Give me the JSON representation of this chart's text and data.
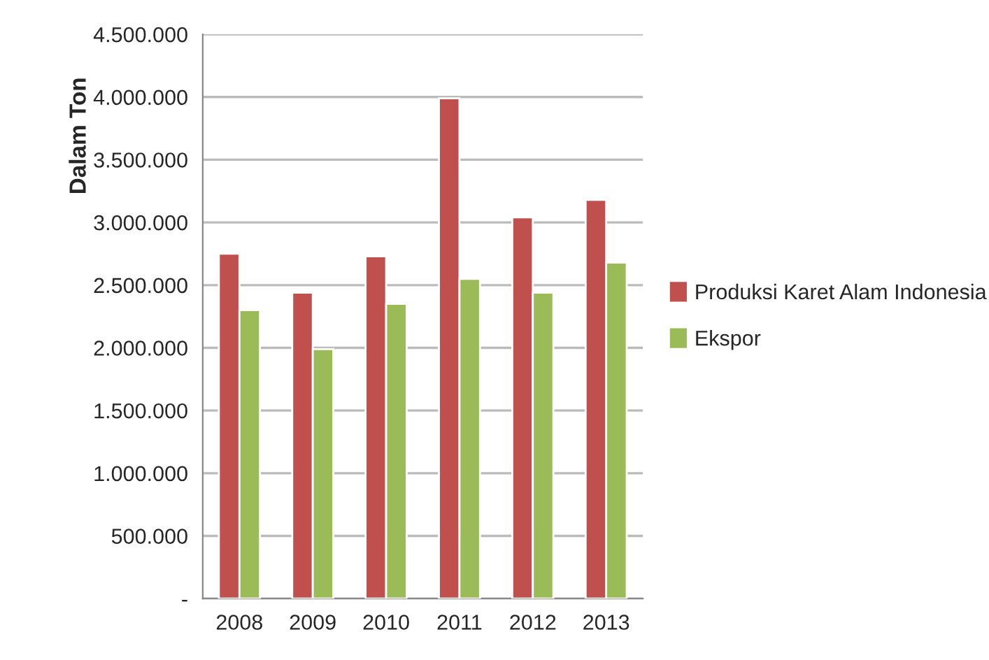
{
  "chart_data": {
    "type": "bar",
    "ylabel": "Dalam Ton",
    "categories": [
      "2008",
      "2009",
      "2010",
      "2011",
      "2012",
      "2013"
    ],
    "series": [
      {
        "name": "Produksi Karet Alam Indonesia",
        "color": "#c0504d",
        "values": [
          2750000,
          2440000,
          2730000,
          3990000,
          3040000,
          3180000
        ]
      },
      {
        "name": "Ekspor",
        "color": "#9bbb59",
        "values": [
          2300000,
          1990000,
          2350000,
          2550000,
          2440000,
          2680000
        ]
      }
    ],
    "ylim": [
      0,
      4500000
    ],
    "yticks": [
      {
        "value": 0,
        "label": "-"
      },
      {
        "value": 500000,
        "label": "500.000"
      },
      {
        "value": 1000000,
        "label": "1.000.000"
      },
      {
        "value": 1500000,
        "label": "1.500.000"
      },
      {
        "value": 2000000,
        "label": "2.000.000"
      },
      {
        "value": 2500000,
        "label": "2.500.000"
      },
      {
        "value": 3000000,
        "label": "3.000.000"
      },
      {
        "value": 3500000,
        "label": "3.500.000"
      },
      {
        "value": 4000000,
        "label": "4.000.000"
      },
      {
        "value": 4500000,
        "label": "4.500.000"
      }
    ],
    "grid": "y",
    "legend": "right"
  }
}
